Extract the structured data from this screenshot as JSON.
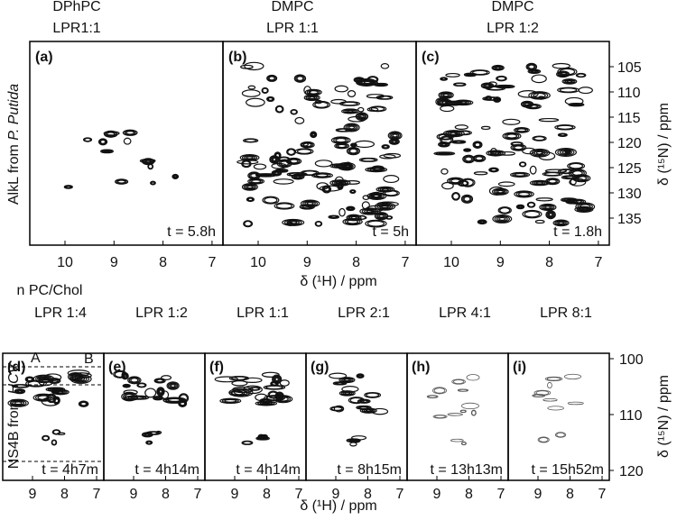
{
  "top_row": {
    "row_label": [
      "AlkL from ",
      "P. Putida"
    ],
    "x_axis_label": "δ (¹H) / ppm",
    "y_axis_label": "δ (¹⁵N) / ppm",
    "x_ticks": [
      "10",
      "9",
      "8",
      "7"
    ],
    "y_ticks": [
      "105",
      "110",
      "115",
      "120",
      "125",
      "130",
      "135"
    ],
    "panels": [
      {
        "title": [
          "DPhPC",
          "LPR1:1"
        ],
        "label": "(a)",
        "time": "t = 5.8h"
      },
      {
        "title": [
          "DMPC",
          "LPR 1:1"
        ],
        "label": "(b)",
        "time": "t = 5h"
      },
      {
        "title": [
          "DMPC",
          "LPR 1:2"
        ],
        "label": "(c)",
        "time": "t = 1.8h"
      }
    ]
  },
  "bottom_row": {
    "header": "n PC/Chol",
    "row_label": [
      "NS4B from ",
      "HCV"
    ],
    "x_axis_label": "δ (¹H) / ppm",
    "y_axis_label": "δ (¹⁵N) / ppm",
    "x_ticks": [
      "9",
      "8",
      "7"
    ],
    "y_ticks": [
      "100",
      "110",
      "120"
    ],
    "annotations": [
      "A",
      "B"
    ],
    "panels": [
      {
        "title": "LPR 1:4",
        "label": "(d)",
        "time": "t = 4h7m"
      },
      {
        "title": "LPR 1:2",
        "label": "(e)",
        "time": "t = 4h14m"
      },
      {
        "title": "LPR 1:1",
        "label": "(f)",
        "time": "t = 4h14m"
      },
      {
        "title": "LPR 2:1",
        "label": "(g)",
        "time": "t = 8h15m"
      },
      {
        "title": "LPR 4:1",
        "label": "(h)",
        "time": "t = 13h13m"
      },
      {
        "title": "LPR 8:1",
        "label": "(i)",
        "time": "t = 15h52m"
      }
    ]
  }
}
